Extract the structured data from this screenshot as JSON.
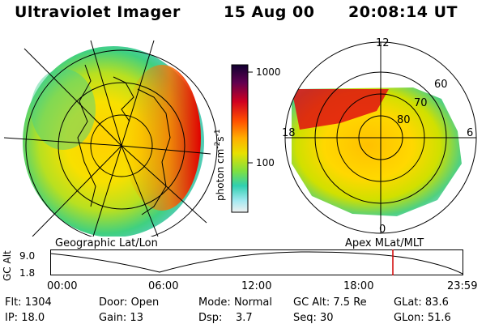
{
  "header": {
    "title": "Ultraviolet Imager",
    "date": "15 Aug 00",
    "time": "20:08:14 UT"
  },
  "colorbar": {
    "ticks": [
      "1000",
      "100"
    ],
    "label": "photon cm",
    "label_exp1": "-2",
    "label_mid": "s",
    "label_exp2": "-1"
  },
  "left_panel": {
    "caption": "Geographic Lat/Lon"
  },
  "right_panel": {
    "caption": "Apex MLat/MLT",
    "lat_labels": [
      "60",
      "70",
      "80"
    ],
    "mlt_labels": {
      "top": "12",
      "bottom": "0",
      "left": "18",
      "right": "6"
    }
  },
  "altitude_plot": {
    "ylabel": "GC Alt",
    "yticks": [
      "9.0",
      "1.8"
    ],
    "xticks": [
      "00:00",
      "06:00",
      "12:00",
      "18:00",
      "23:59"
    ],
    "marker_color": "#d00000"
  },
  "info": {
    "flt_label": "Flt:",
    "flt_value": "1304",
    "ip_label": "IP:",
    "ip_value": "18.0",
    "door_label": "Door:",
    "door_value": "Open",
    "gain_label": "Gain:",
    "gain_value": "13",
    "mode_label": "Mode:",
    "mode_value": "Normal",
    "dsp_label": "Dsp:",
    "dsp_value": "3.7",
    "gcalt_label": "GC Alt:",
    "gcalt_value": "7.5 Re",
    "seq_label": "Seq:",
    "seq_value": "30",
    "glat_label": "GLat:",
    "glat_value": "83.6",
    "glon_label": "GLon:",
    "glon_value": "51.6"
  }
}
